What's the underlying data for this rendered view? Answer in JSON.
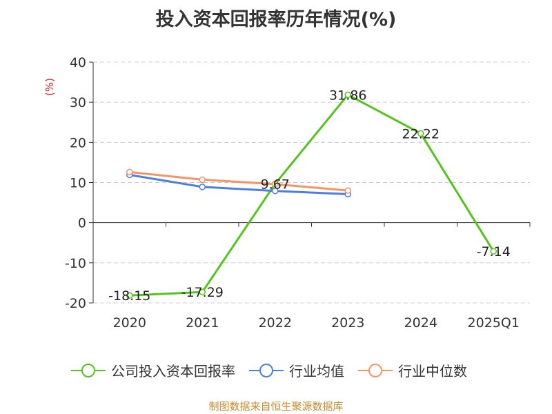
{
  "chart_data": {
    "type": "line",
    "title": "投入资本回报率历年情况(%)",
    "ylabel": "(%)",
    "categories": [
      "2020",
      "2021",
      "2022",
      "2023",
      "2024",
      "2025Q1"
    ],
    "ylim": [
      -20,
      40
    ],
    "yticks": [
      "40",
      "30",
      "20",
      "10",
      "0",
      "-10",
      "-20"
    ],
    "grid": true,
    "legend_position": "bottom",
    "series": [
      {
        "name": "公司投入资本回报率",
        "color": "#52c41a",
        "values": [
          -18.15,
          -17.29,
          9.67,
          31.86,
          22.22,
          -7.14
        ],
        "labels": [
          "-18.15",
          "-17.29",
          "9.67",
          "31.86",
          "22.22",
          "-7.14"
        ]
      },
      {
        "name": "行业均值",
        "color": "#4a7ee0",
        "values": [
          11.9,
          8.9,
          7.9,
          7.1,
          null,
          null
        ]
      },
      {
        "name": "行业中位数",
        "color": "#f59467",
        "values": [
          12.6,
          10.7,
          9.6,
          8.0,
          null,
          null
        ]
      }
    ]
  },
  "footer": {
    "source": "制图数据来自恒生聚源数据库"
  }
}
